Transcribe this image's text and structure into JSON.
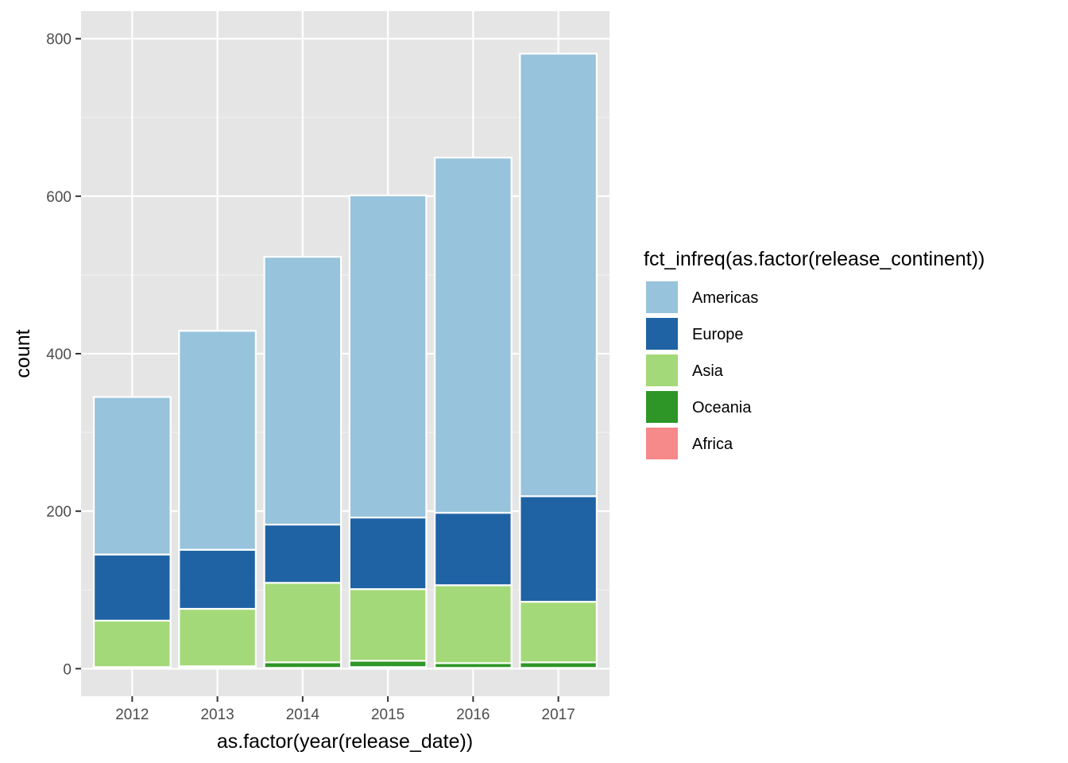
{
  "chart_data": {
    "type": "bar",
    "stacked": true,
    "title": "",
    "xlabel": "as.factor(year(release_date))",
    "ylabel": "count",
    "ylim": [
      -35,
      835
    ],
    "yticks": [
      0,
      200,
      400,
      600,
      800
    ],
    "grid": true,
    "legend_position": "right",
    "legend_title": "fct_infreq(as.factor(release_continent))",
    "categories": [
      "2012",
      "2013",
      "2014",
      "2015",
      "2016",
      "2017"
    ],
    "series": [
      {
        "name": "Americas",
        "color": "#97C3DC",
        "values": [
          200,
          278,
          340,
          409,
          451,
          562
        ]
      },
      {
        "name": "Europe",
        "color": "#1F63A5",
        "values": [
          84,
          75,
          74,
          91,
          92,
          134
        ]
      },
      {
        "name": "Asia",
        "color": "#A4D979",
        "values": [
          59,
          73,
          101,
          91,
          99,
          77
        ]
      },
      {
        "name": "Oceania",
        "color": "#2E9626",
        "values": [
          1,
          2,
          7,
          8,
          6,
          7
        ]
      },
      {
        "name": "Africa",
        "color": "#F6898A",
        "values": [
          1,
          1,
          1,
          2,
          1,
          1
        ]
      }
    ]
  },
  "colors": {
    "panel_background": "#E5E5E5",
    "grid_line": "#FFFFFF",
    "tick_text": "#4D4D4D",
    "tick_mark": "#333333"
  }
}
